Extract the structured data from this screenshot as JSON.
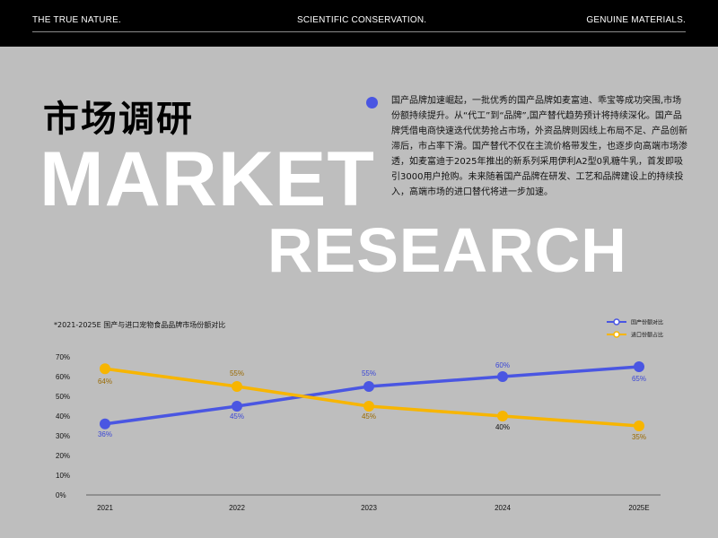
{
  "header": {
    "left": "THE TRUE NATURE.",
    "center": "SCIENTIFIC CONSERVATION.",
    "right": "GENUINE MATERIALS."
  },
  "hero": {
    "cn_title": "市场调研",
    "big_line1": "MARKET",
    "big_line2": "RESEARCH"
  },
  "paragraph": "国产品牌加速崛起，一批优秀的国产品牌如麦富迪、乖宝等成功突围,市场份额持续提升。从“代工”到“品牌”,国产替代趋势预计将持续深化。国产品牌凭借电商快速迭代优势抢占市场，外资品牌则因线上布局不足、产品创新滞后，市占率下滑。国产替代不仅在主流价格带发生，也逐步向高端市场渗透，如麦富迪于2025年推出的新系列采用伊利A2型0乳糖牛乳，首发即吸引3000用户抢购。未来随着国产品牌在研发、工艺和品牌建设上的持续投入，高端市场的进口替代将进一步加速。",
  "chart_data": {
    "type": "line",
    "title": "*2021-2025E 国产与进口宠物食品品牌市场份额对比",
    "categories": [
      "2021",
      "2022",
      "2023",
      "2024",
      "2025E"
    ],
    "y_ticks": [
      "0%",
      "10%",
      "20%",
      "30%",
      "40%",
      "50%",
      "60%",
      "70%"
    ],
    "ylim": [
      0,
      70
    ],
    "legend_position": "top-right",
    "grid": false,
    "series": [
      {
        "name": "国产份额对比",
        "color": "#4a56e2",
        "values": [
          36,
          45,
          55,
          60,
          65
        ],
        "labels": [
          "36%",
          "45%",
          "55%",
          "60%",
          "65%"
        ],
        "label_color": "#3b47d6"
      },
      {
        "name": "进口份额占比",
        "color": "#f7b500",
        "values": [
          64,
          55,
          45,
          40,
          35
        ],
        "labels": [
          "64%",
          "55%",
          "45%",
          "40%",
          "35%"
        ],
        "label_color": "#9a6a00"
      }
    ]
  }
}
